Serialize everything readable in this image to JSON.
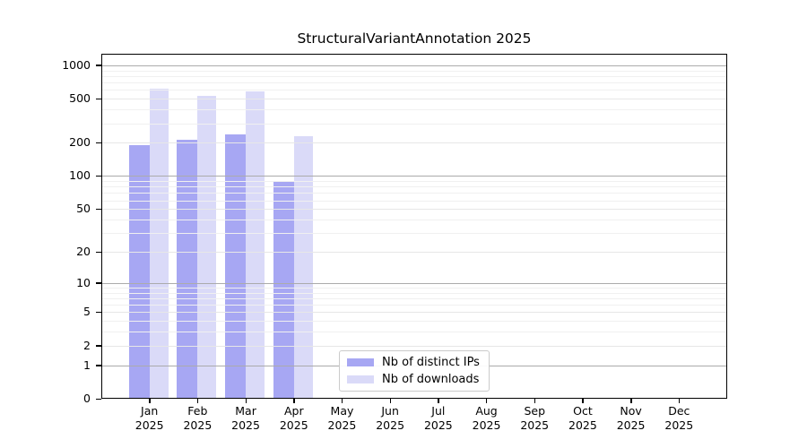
{
  "title": "StructuralVariantAnnotation 2025",
  "chart_data": {
    "type": "bar",
    "title": "StructuralVariantAnnotation 2025",
    "categories": [
      "Jan 2025",
      "Feb 2025",
      "Mar 2025",
      "Apr 2025",
      "May 2025",
      "Jun 2025",
      "Jul 2025",
      "Aug 2025",
      "Sep 2025",
      "Oct 2025",
      "Nov 2025",
      "Dec 2025"
    ],
    "series": [
      {
        "name": "Nb of distinct IPs",
        "color": "#a7a7f3",
        "values": [
          190,
          213,
          240,
          88,
          null,
          null,
          null,
          null,
          null,
          null,
          null,
          null
        ]
      },
      {
        "name": "Nb of downloads",
        "color": "#dadaf8",
        "values": [
          610,
          530,
          585,
          230,
          null,
          null,
          null,
          null,
          null,
          null,
          null,
          null
        ]
      }
    ],
    "xlabel": "",
    "ylabel": "",
    "yscale": "log10(1+x)",
    "ylim": [
      0,
      1270
    ],
    "yticks": [
      0,
      1,
      2,
      5,
      10,
      20,
      50,
      100,
      200,
      500,
      1000
    ],
    "gridlines": {
      "decade": [
        1,
        10,
        100,
        1000
      ],
      "major": [
        2,
        5,
        20,
        50,
        200,
        500
      ],
      "minor": [
        3,
        4,
        6,
        7,
        8,
        9,
        30,
        40,
        60,
        70,
        80,
        90,
        300,
        400,
        600,
        700,
        800,
        900
      ]
    },
    "grid": true,
    "legend_position": "inside-bottom-center"
  },
  "colors": {
    "distinct_ips_bar": "#a7a7f3",
    "downloads_bar": "#dadaf8",
    "decade_gridline": "#ababab",
    "major_gridline": "#e7e7e7",
    "minor_gridline": "#f0f0f0",
    "spine": "#000000",
    "background": "#ffffff"
  }
}
